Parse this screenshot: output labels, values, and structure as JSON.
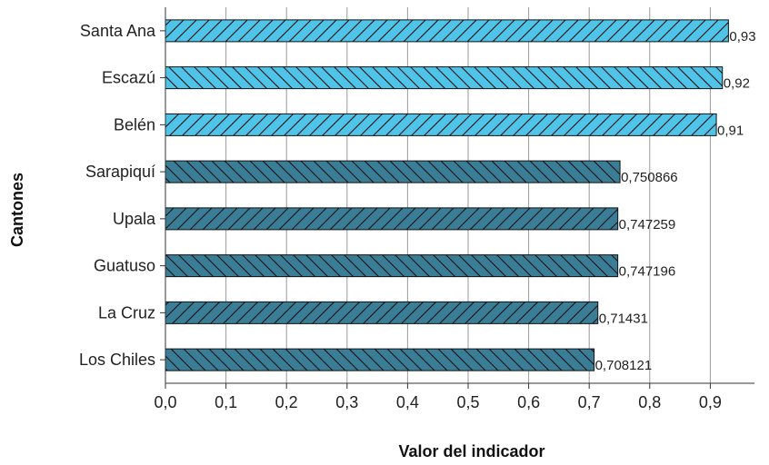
{
  "chart_data": {
    "type": "bar",
    "orientation": "horizontal",
    "xlabel": "Valor del indicador",
    "ylabel": "Cantones",
    "xlim": [
      0,
      1.0
    ],
    "xticks": [
      "0,0",
      "0,1",
      "0,2",
      "0,3",
      "0,4",
      "0,5",
      "0,6",
      "0,7",
      "0,8",
      "0,9"
    ],
    "grid": true,
    "categories": [
      "Santa Ana",
      "Escazú",
      "Belén",
      "Sarapiquí",
      "Upala",
      "Guatuso",
      "La Cruz",
      "Los Chiles"
    ],
    "values": [
      0.93,
      0.92,
      0.91,
      0.750866,
      0.747259,
      0.747196,
      0.71431,
      0.708121
    ],
    "value_labels": [
      "0,93",
      "0,92",
      "0,91",
      "0,750866",
      "0,747259",
      "0,747196",
      "0,71431",
      "0,708121"
    ],
    "bar_colors": [
      "#4fc4e8",
      "#4fc4e8",
      "#4fc4e8",
      "#3a7d96",
      "#3a7d96",
      "#3a7d96",
      "#3a7d96",
      "#3a7d96"
    ],
    "bar_hatch": [
      "forward",
      "back",
      "forward",
      "back",
      "forward",
      "back",
      "forward",
      "back"
    ]
  }
}
